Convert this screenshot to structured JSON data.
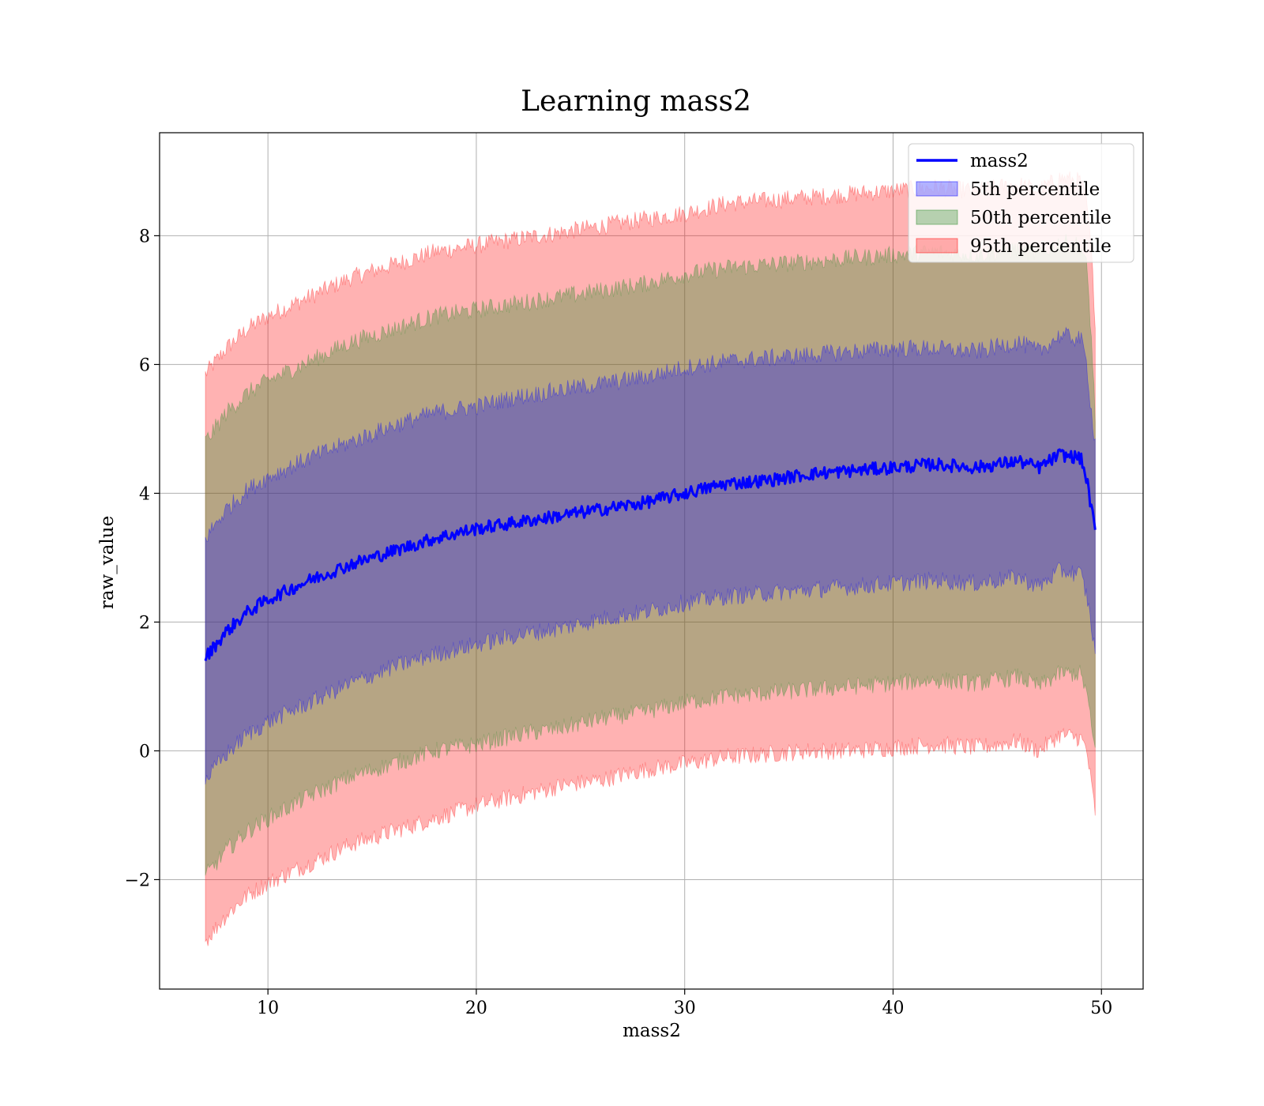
{
  "chart_data": {
    "type": "area",
    "title": "Learning mass2",
    "xlabel": "mass2",
    "ylabel": "raw_value",
    "xlim": [
      4.8,
      52.0
    ],
    "ylim": [
      -3.7,
      9.6
    ],
    "xticks": [
      10,
      20,
      30,
      40,
      50
    ],
    "yticks": [
      -2,
      0,
      2,
      4,
      6,
      8
    ],
    "ytick_labels": [
      "−2",
      "0",
      "2",
      "4",
      "6",
      "8"
    ],
    "grid": true,
    "legend_position": "top-right",
    "line_series": {
      "name": "mass2",
      "color": "#0000ff",
      "x": [
        7.0,
        8.0,
        9.0,
        10.0,
        12.0,
        14.0,
        16.0,
        18.0,
        20.0,
        22.0,
        24.0,
        26.0,
        28.0,
        30.0,
        32.0,
        34.0,
        36.0,
        38.0,
        40.0,
        42.0,
        44.0,
        46.0,
        47.0,
        48.0,
        49.0,
        49.3,
        49.5,
        49.7
      ],
      "y": [
        1.45,
        1.85,
        2.15,
        2.35,
        2.65,
        2.9,
        3.1,
        3.3,
        3.45,
        3.55,
        3.65,
        3.75,
        3.85,
        4.0,
        4.15,
        4.2,
        4.3,
        4.35,
        4.4,
        4.45,
        4.4,
        4.5,
        4.4,
        4.6,
        4.55,
        4.2,
        3.8,
        3.4
      ]
    },
    "bands": [
      {
        "name": "95th percentile",
        "color": "#ff0000",
        "opacity": 0.3,
        "x": [
          7.0,
          8.0,
          9.0,
          10.0,
          12.0,
          14.0,
          16.0,
          18.0,
          20.0,
          22.0,
          24.0,
          26.0,
          28.0,
          30.0,
          32.0,
          34.0,
          36.0,
          38.0,
          40.0,
          42.0,
          44.0,
          46.0,
          47.0,
          48.0,
          49.0,
          49.3,
          49.5,
          49.7
        ],
        "lower": [
          -2.95,
          -2.55,
          -2.25,
          -2.05,
          -1.75,
          -1.45,
          -1.25,
          -1.05,
          -0.85,
          -0.7,
          -0.55,
          -0.45,
          -0.3,
          -0.2,
          -0.1,
          -0.05,
          0.0,
          0.0,
          0.05,
          0.1,
          0.05,
          0.15,
          0.0,
          0.25,
          0.2,
          0.0,
          -0.5,
          -0.95
        ],
        "upper": [
          5.85,
          6.25,
          6.55,
          6.75,
          7.05,
          7.35,
          7.55,
          7.75,
          7.85,
          7.95,
          8.05,
          8.15,
          8.25,
          8.35,
          8.5,
          8.55,
          8.6,
          8.65,
          8.7,
          8.75,
          8.7,
          8.8,
          8.7,
          8.9,
          8.85,
          8.5,
          7.8,
          6.7
        ]
      },
      {
        "name": "50th percentile",
        "color": "#2e8b2e",
        "opacity": 0.35,
        "x": [
          7.0,
          8.0,
          9.0,
          10.0,
          12.0,
          14.0,
          16.0,
          18.0,
          20.0,
          22.0,
          24.0,
          26.0,
          28.0,
          30.0,
          32.0,
          34.0,
          36.0,
          38.0,
          40.0,
          42.0,
          44.0,
          46.0,
          47.0,
          48.0,
          49.0,
          49.3,
          49.5,
          49.7
        ],
        "lower": [
          -1.95,
          -1.55,
          -1.25,
          -1.05,
          -0.7,
          -0.4,
          -0.2,
          0.0,
          0.1,
          0.25,
          0.35,
          0.5,
          0.6,
          0.75,
          0.85,
          0.9,
          0.95,
          1.0,
          1.05,
          1.1,
          1.05,
          1.15,
          1.0,
          1.2,
          1.2,
          0.9,
          0.4,
          0.0
        ],
        "upper": [
          4.8,
          5.25,
          5.55,
          5.75,
          6.05,
          6.35,
          6.55,
          6.75,
          6.85,
          6.95,
          7.05,
          7.15,
          7.25,
          7.4,
          7.5,
          7.55,
          7.6,
          7.65,
          7.7,
          7.75,
          7.7,
          7.8,
          7.7,
          7.9,
          7.85,
          7.5,
          6.5,
          5.2
        ]
      },
      {
        "name": "5th percentile",
        "color": "#0000ff",
        "opacity": 0.3,
        "x": [
          7.0,
          8.0,
          9.0,
          10.0,
          12.0,
          14.0,
          16.0,
          18.0,
          20.0,
          22.0,
          24.0,
          26.0,
          28.0,
          30.0,
          32.0,
          34.0,
          36.0,
          38.0,
          40.0,
          42.0,
          44.0,
          46.0,
          47.0,
          48.0,
          49.0,
          49.3,
          49.5,
          49.7
        ],
        "lower": [
          -0.45,
          -0.05,
          0.25,
          0.45,
          0.75,
          1.05,
          1.3,
          1.5,
          1.65,
          1.8,
          1.9,
          2.05,
          2.15,
          2.3,
          2.4,
          2.45,
          2.5,
          2.55,
          2.6,
          2.65,
          2.6,
          2.7,
          2.55,
          2.8,
          2.75,
          2.4,
          2.0,
          1.5
        ],
        "upper": [
          3.3,
          3.75,
          4.05,
          4.25,
          4.55,
          4.8,
          5.05,
          5.25,
          5.35,
          5.5,
          5.6,
          5.7,
          5.8,
          5.95,
          6.05,
          6.1,
          6.15,
          6.2,
          6.25,
          6.25,
          6.2,
          6.35,
          6.2,
          6.45,
          6.4,
          6.0,
          5.3,
          4.8
        ]
      }
    ],
    "legend": [
      {
        "label": "mass2",
        "kind": "line",
        "color": "#0000ff"
      },
      {
        "label": "5th percentile",
        "kind": "patch",
        "color": "#0000ff",
        "opacity": 0.3
      },
      {
        "label": "50th percentile",
        "kind": "patch",
        "color": "#2e8b2e",
        "opacity": 0.35
      },
      {
        "label": "95th percentile",
        "kind": "patch",
        "color": "#ff0000",
        "opacity": 0.3
      }
    ]
  }
}
